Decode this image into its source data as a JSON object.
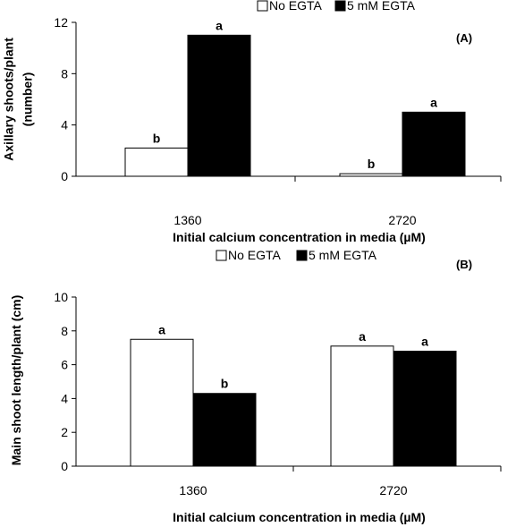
{
  "chart_data": [
    {
      "type": "bar",
      "panel_label": "(A)",
      "categories": [
        "1360",
        "2720"
      ],
      "series": [
        {
          "name": "No EGTA",
          "values": [
            2.2,
            0.2
          ],
          "letters": [
            "b",
            "b"
          ],
          "color": "#ffffff"
        },
        {
          "name": "5 mM EGTA",
          "values": [
            11.0,
            5.0
          ],
          "letters": [
            "a",
            "a"
          ],
          "color": "#000000"
        }
      ],
      "xlabel": "Initial calcium concentration in media (µM)",
      "ylabel_lines": [
        "Axillary shoots/plant",
        "(number)"
      ],
      "ylim": [
        0,
        12
      ],
      "yticks": [
        0,
        4,
        8,
        12
      ],
      "legend_position": "top"
    },
    {
      "type": "bar",
      "panel_label": "(B)",
      "categories": [
        "1360",
        "2720"
      ],
      "series": [
        {
          "name": "No EGTA",
          "values": [
            7.5,
            7.1
          ],
          "letters": [
            "a",
            "a"
          ],
          "color": "#ffffff"
        },
        {
          "name": "5 mM EGTA",
          "values": [
            4.3,
            6.8
          ],
          "letters": [
            "b",
            "a"
          ],
          "color": "#000000"
        }
      ],
      "xlabel": "Initial calcium concentration in media (µM)",
      "ylabel_lines": [
        "Main shoot length/plant (cm)"
      ],
      "ylim": [
        0,
        10
      ],
      "yticks": [
        0,
        2,
        4,
        6,
        8,
        10
      ],
      "legend_position": "top"
    }
  ]
}
